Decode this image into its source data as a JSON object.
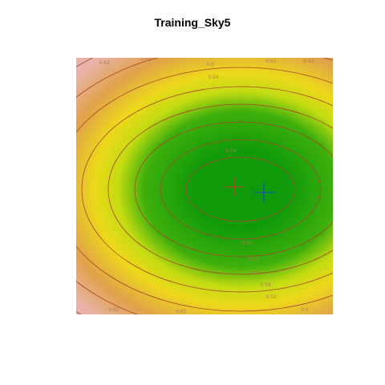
{
  "chart_data": {
    "type": "heatmap",
    "title": "Training_Sky5",
    "xlabel": "",
    "ylabel": "",
    "axes_visible": false,
    "colormap": "terrain",
    "contour_levels": [
      0.54,
      0.55,
      0.56,
      0.57,
      0.58,
      0.59,
      0.6,
      0.61,
      0.62
    ],
    "contour_labels_visible": [
      {
        "level": "0.62",
        "side": "top"
      },
      {
        "level": "0.61",
        "side": "top"
      },
      {
        "level": "0.6",
        "side": "top"
      },
      {
        "level": "0.61",
        "side": "top"
      },
      {
        "level": "0.62",
        "side": "top"
      },
      {
        "level": "0.59",
        "side": "top"
      },
      {
        "level": "0.54",
        "side": "center"
      },
      {
        "level": "0.55",
        "side": "bottom"
      },
      {
        "level": "0.56",
        "side": "bottom"
      },
      {
        "level": "0.57",
        "side": "bottom"
      },
      {
        "level": "0.58",
        "side": "bottom"
      },
      {
        "level": "0.59",
        "side": "bottom"
      },
      {
        "level": "0.6",
        "side": "bottom"
      },
      {
        "level": "0.61",
        "side": "bottom"
      },
      {
        "level": "0.62",
        "side": "bottom"
      }
    ],
    "markers": [
      {
        "symbol": "cross",
        "color": "#d03a2a"
      },
      {
        "symbol": "cross",
        "color": "#2a3fcf"
      }
    ],
    "colors": {
      "center": "#0f9a0a",
      "inner": "#3fb00c",
      "mid": "#c4dc12",
      "outer_yellow": "#ecd81a",
      "orange": "#e0a24a",
      "pink": "#e7b3a8",
      "contour": "#a8432a"
    }
  }
}
